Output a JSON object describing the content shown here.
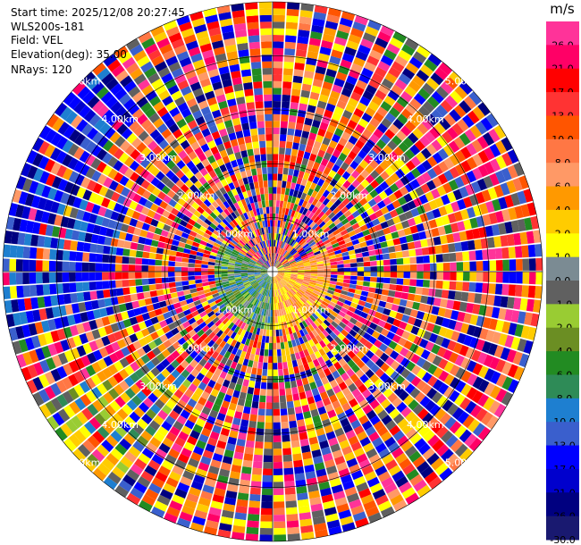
{
  "info": {
    "start_time": "Start time: 2025/12/08 20:27:45",
    "instrument": "WLS200s-181",
    "field": "Field: VEL",
    "elevation": "Elevation(deg): 35.00",
    "nrays": "NRays: 120"
  },
  "chart_data": {
    "type": "heatmap",
    "projection": "polar-ppi",
    "field": "VEL",
    "n_rays": 120,
    "elevation_deg": 35.0,
    "range_rings_km": [
      1.0,
      2.0,
      3.0,
      4.0,
      5.0
    ],
    "range_ring_labels": [
      "1.00km",
      "2.00km",
      "3.00km",
      "4.00km",
      "5.00km"
    ],
    "max_range_km": 5.0,
    "grid": true,
    "colorbar": {
      "unit": "m/s",
      "placement": "right",
      "bins": [
        {
          "label": "26.0",
          "color": "#ff3399"
        },
        {
          "label": "21.0",
          "color": "#ff0066"
        },
        {
          "label": "17.0",
          "color": "#ff0000"
        },
        {
          "label": "13.0",
          "color": "#ff3333"
        },
        {
          "label": "10.0",
          "color": "#ff5500"
        },
        {
          "label": "8.0",
          "color": "#ff7744"
        },
        {
          "label": "6.0",
          "color": "#ff9966"
        },
        {
          "label": "4.0",
          "color": "#ff9900"
        },
        {
          "label": "2.0",
          "color": "#ffcc00"
        },
        {
          "label": "1.0",
          "color": "#ffff00"
        },
        {
          "label": "0.0",
          "color": "#7b8b93"
        },
        {
          "label": "-1.0",
          "color": "#606060"
        },
        {
          "label": "-2.0",
          "color": "#99cc33"
        },
        {
          "label": "-4.0",
          "color": "#6b8e23"
        },
        {
          "label": "-6.0",
          "color": "#228b22"
        },
        {
          "label": "-8.0",
          "color": "#2e8b57"
        },
        {
          "label": "-10.0",
          "color": "#1e7fd0"
        },
        {
          "label": "-13.0",
          "color": "#3a5fcd"
        },
        {
          "label": "-17.0",
          "color": "#0000ff"
        },
        {
          "label": "-21.0",
          "color": "#0000cd"
        },
        {
          "label": "-26.0",
          "color": "#000080"
        },
        {
          "label": "-30.0",
          "color": "#191970"
        }
      ]
    },
    "palette_sample": [
      "#0000ff",
      "#ff3399",
      "#ff0066",
      "#ff0000",
      "#000080",
      "#0000cd",
      "#ff3333",
      "#ff9900",
      "#ffff00",
      "#3a5fcd",
      "#ff5500",
      "#ff7744",
      "#ffcc00",
      "#ff9966",
      "#228b22",
      "#606060"
    ],
    "region_colors": {
      "west": [
        "#0000ff",
        "#0000cd",
        "#000080",
        "#1e7fd0",
        "#3a5fcd",
        "#0000ff"
      ],
      "southwest": [
        "#ffff00",
        "#ffcc00",
        "#ff9900",
        "#6b8e23",
        "#99cc33",
        "#606060",
        "#2e8b57",
        "#1e7fd0"
      ],
      "center_west": [
        "#6b8e23",
        "#228b22",
        "#2e8b57",
        "#99cc33",
        "#7b8b93",
        "#1e7fd0"
      ],
      "center_east": [
        "#ffff00",
        "#ffcc00",
        "#ff9900",
        "#ff7744",
        "#ff9966"
      ]
    }
  }
}
